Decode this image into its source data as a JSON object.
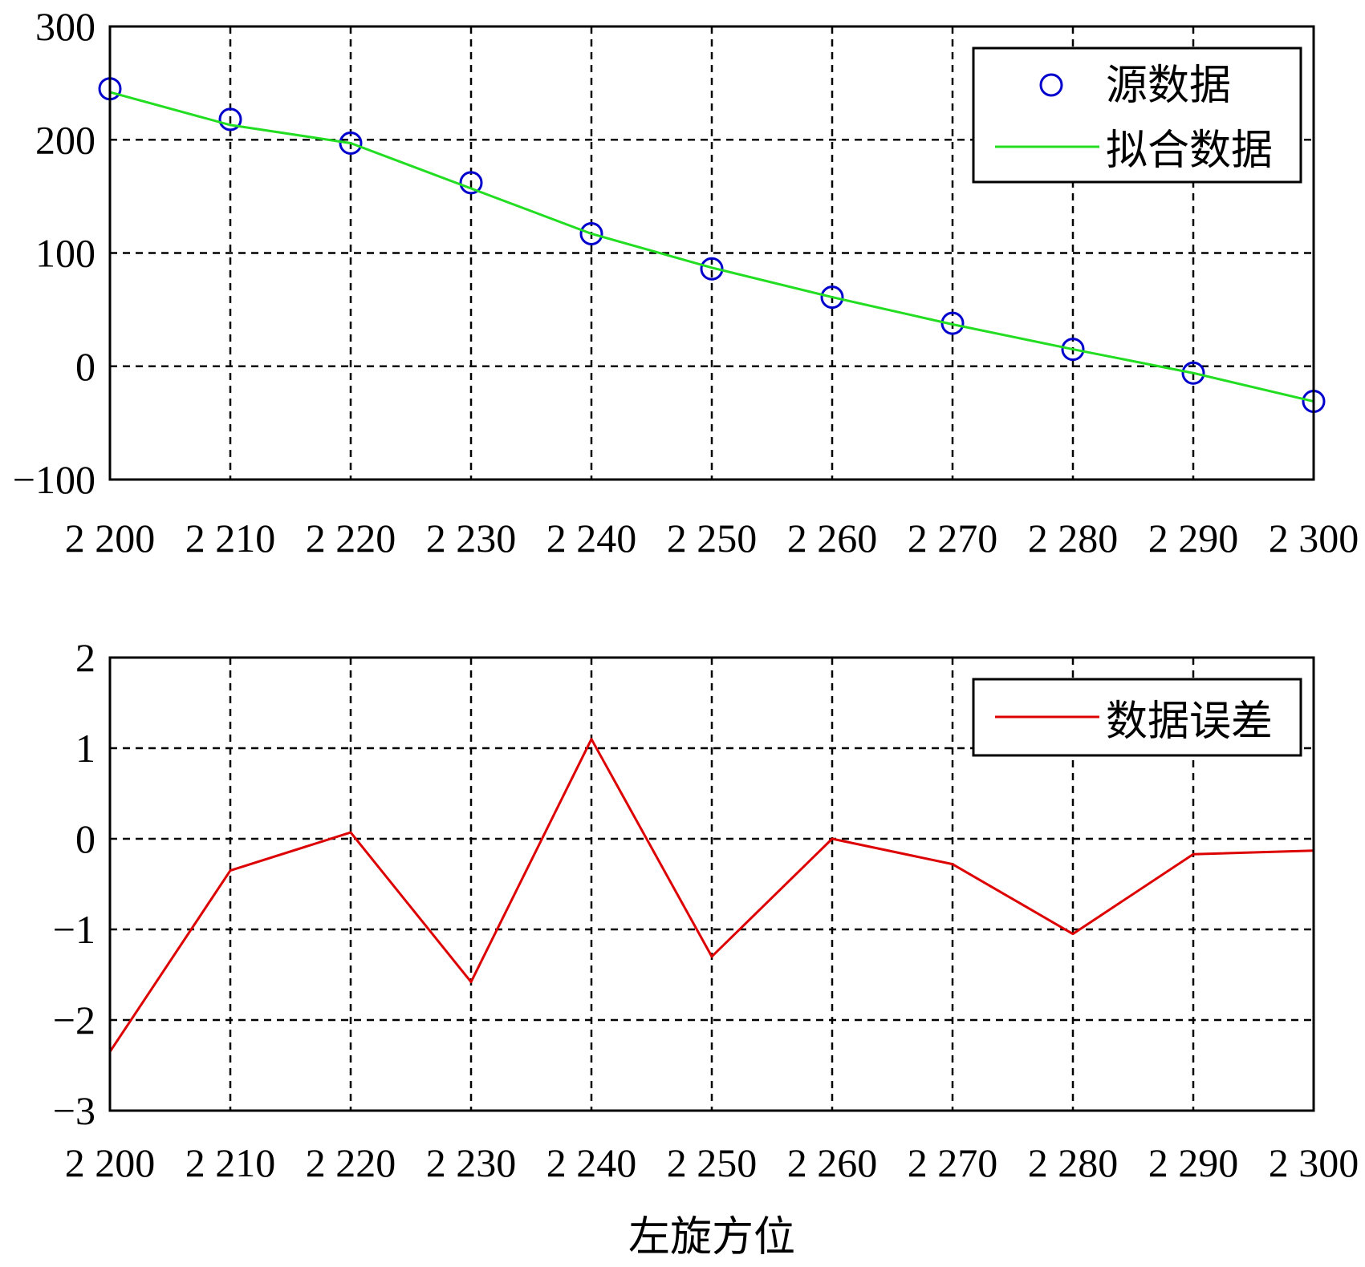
{
  "chart_data": [
    {
      "type": "line",
      "x": [
        2200,
        2210,
        2220,
        2230,
        2240,
        2250,
        2260,
        2270,
        2280,
        2290,
        2300
      ],
      "x_tick_labels": [
        "2 200",
        "2 210",
        "2 220",
        "2 230",
        "2 240",
        "2 250",
        "2 260",
        "2 270",
        "2 280",
        "2 290",
        "2 300"
      ],
      "y_tick_labels": [
        "300",
        "200",
        "100",
        "0",
        "−100"
      ],
      "y_ticks": [
        300,
        200,
        100,
        0,
        -100
      ],
      "xlim": [
        2200,
        2300
      ],
      "ylim": [
        -100,
        300
      ],
      "grid": true,
      "legend_position": "top-right",
      "series": [
        {
          "name": "源数据",
          "marker": "circle",
          "line": false,
          "color": "#0000cc",
          "values": [
            245,
            218,
            197,
            162,
            117,
            86,
            61,
            38,
            15,
            -6,
            -31
          ]
        },
        {
          "name": "拟合数据",
          "marker": "none",
          "line": true,
          "color": "#22dd22",
          "values": [
            242,
            213,
            197,
            157,
            117,
            87,
            61,
            37,
            15,
            -6,
            -31
          ]
        }
      ]
    },
    {
      "type": "line",
      "x": [
        2200,
        2210,
        2220,
        2230,
        2240,
        2250,
        2260,
        2270,
        2280,
        2290,
        2300
      ],
      "x_tick_labels": [
        "2 200",
        "2 210",
        "2 220",
        "2 230",
        "2 240",
        "2 250",
        "2 260",
        "2 270",
        "2 280",
        "2 290",
        "2 300"
      ],
      "y_tick_labels": [
        "2",
        "1",
        "0",
        "−1",
        "−2",
        "−3"
      ],
      "y_ticks": [
        2,
        1,
        0,
        -1,
        -2,
        -3
      ],
      "xlim": [
        2200,
        2300
      ],
      "ylim": [
        -3,
        2
      ],
      "grid": true,
      "legend_position": "top-right",
      "xlabel": "左旋方位",
      "series": [
        {
          "name": "数据误差",
          "marker": "none",
          "line": true,
          "color": "#dd0000",
          "values": [
            -2.35,
            -0.35,
            0.07,
            -1.58,
            1.1,
            -1.3,
            0.0,
            -0.28,
            -1.05,
            -0.17,
            -0.13
          ]
        }
      ]
    }
  ]
}
